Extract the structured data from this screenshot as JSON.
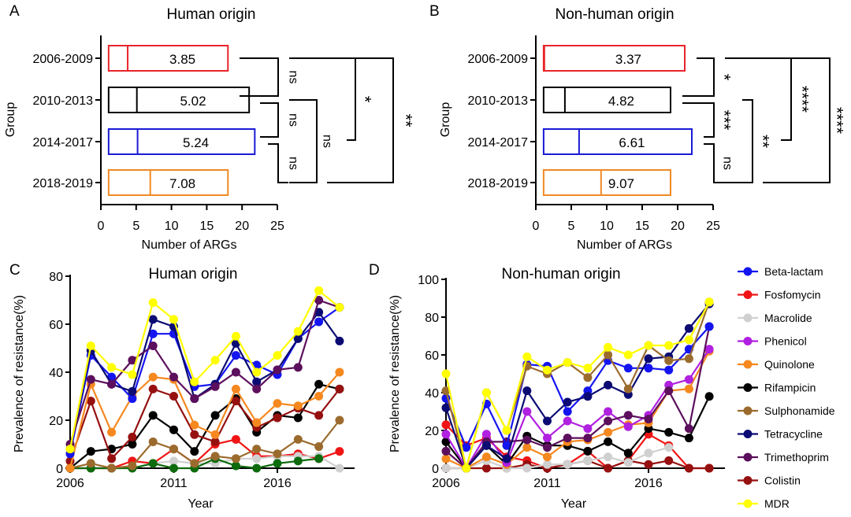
{
  "chart_data": [
    {
      "panel": "A",
      "type": "box",
      "title": "Human origin",
      "xlabel": "Number of ARGs",
      "ylabel": "Group",
      "xlim": [
        0,
        25
      ],
      "xticks": [
        "0",
        "5",
        "10",
        "15",
        "20",
        "25"
      ],
      "groups": [
        {
          "label": "2006-2009",
          "range": [
            1.1,
            18
          ],
          "median": 3.8,
          "value_label": "3.85",
          "color": "#e8242a"
        },
        {
          "label": "2010-2013",
          "range": [
            1.1,
            21
          ],
          "median": 5.1,
          "value_label": "5.02",
          "color": "#000000"
        },
        {
          "label": "2014-2017",
          "range": [
            1.1,
            21.8
          ],
          "median": 5.2,
          "value_label": "5.24",
          "color": "#1a1ad6"
        },
        {
          "label": "2018-2019",
          "range": [
            1.1,
            18
          ],
          "median": 7.0,
          "value_label": "7.08",
          "color": "#f08a24"
        }
      ],
      "comparisons": [
        {
          "groups": [
            0,
            1
          ],
          "label": "ns"
        },
        {
          "groups": [
            1,
            2
          ],
          "label": "ns"
        },
        {
          "groups": [
            2,
            3
          ],
          "label": "ns"
        },
        {
          "groups": [
            0,
            2
          ],
          "label": "*"
        },
        {
          "groups": [
            1,
            3
          ],
          "label": "ns"
        },
        {
          "groups": [
            0,
            3
          ],
          "label": "**"
        }
      ]
    },
    {
      "panel": "B",
      "type": "box",
      "title": "Non-human origin",
      "xlabel": "Number of ARGs",
      "ylabel": "Group",
      "xlim": [
        0,
        25
      ],
      "xticks": [
        "0",
        "5",
        "10",
        "15",
        "20",
        "25"
      ],
      "groups": [
        {
          "label": "2006-2009",
          "range": [
            1.1,
            21
          ],
          "median": 1.2,
          "value_label": "3.37",
          "color": "#e8242a"
        },
        {
          "label": "2010-2013",
          "range": [
            1.1,
            19
          ],
          "median": 4.1,
          "value_label": "4.82",
          "color": "#000000"
        },
        {
          "label": "2014-2017",
          "range": [
            1.1,
            22
          ],
          "median": 6.1,
          "value_label": "6.61",
          "color": "#1a1ad6"
        },
        {
          "label": "2018-2019",
          "range": [
            1.1,
            19
          ],
          "median": 9.2,
          "value_label": "9.07",
          "color": "#f08a24"
        }
      ],
      "comparisons": [
        {
          "groups": [
            0,
            1
          ],
          "label": "*"
        },
        {
          "groups": [
            1,
            2
          ],
          "label": "***"
        },
        {
          "groups": [
            2,
            3
          ],
          "label": "ns"
        },
        {
          "groups": [
            0,
            2
          ],
          "label": "****"
        },
        {
          "groups": [
            1,
            3
          ],
          "label": "**"
        },
        {
          "groups": [
            0,
            3
          ],
          "label": "****"
        }
      ]
    },
    {
      "panel": "C",
      "type": "line",
      "title": "Human origin",
      "xlabel": "Year",
      "ylabel": "Prevalence of resistance(%)",
      "x": [
        2006,
        2007,
        2008,
        2009,
        2010,
        2011,
        2012,
        2013,
        2014,
        2015,
        2016,
        2017,
        2018,
        2019
      ],
      "xticks": [
        "2006",
        "2011",
        "2016"
      ],
      "ylim": [
        0,
        80
      ],
      "yticks": [
        "0",
        "20",
        "40",
        "60",
        "80"
      ],
      "series": [
        {
          "name": "MDR",
          "color": "#ffff00",
          "values": [
            8,
            51,
            42,
            39,
            69,
            62,
            36,
            45,
            55,
            40,
            47,
            57,
            74,
            67
          ]
        },
        {
          "name": "Trimethoprim",
          "color": "#5c0f5c",
          "values": [
            10,
            37,
            35,
            45,
            51,
            38,
            29,
            34,
            40,
            33,
            41,
            42,
            70,
            67
          ]
        },
        {
          "name": "Tetracycline",
          "color": "#0b0b73",
          "values": [
            8,
            49,
            35,
            32,
            62,
            59,
            29,
            35,
            52,
            36,
            41,
            54,
            65,
            53
          ]
        },
        {
          "name": "Beta-lactam",
          "color": "#1414f0",
          "values": [
            6,
            47,
            38,
            29,
            56,
            56,
            34,
            35,
            47,
            43,
            39,
            54,
            61,
            67
          ]
        },
        {
          "name": "Quinolone",
          "color": "#f5881f",
          "values": [
            0,
            35,
            15,
            30,
            38,
            37,
            18,
            14,
            33,
            19,
            27,
            26,
            30,
            40
          ]
        },
        {
          "name": "Colistin",
          "color": "#961010",
          "values": [
            3,
            28,
            4,
            13,
            33,
            30,
            14,
            11,
            28,
            17,
            21,
            25,
            22,
            33
          ]
        },
        {
          "name": "Rifampicin",
          "color": "#000000",
          "values": [
            0,
            7,
            8,
            10,
            22,
            16,
            7,
            22,
            29,
            15,
            22,
            21,
            35,
            33
          ]
        },
        {
          "name": "Sulphonamide",
          "color": "#9b6b2e",
          "values": [
            0,
            2,
            0,
            1,
            11,
            8,
            2,
            5,
            4,
            8,
            6,
            12,
            9,
            20
          ]
        },
        {
          "color": "#0d6b0d",
          "values": [
            0,
            0,
            0,
            0,
            2,
            0,
            0,
            4,
            1,
            0,
            2,
            3,
            4,
            null
          ]
        },
        {
          "name": "Macrolide",
          "color": "#d0d0d0",
          "values": [
            0,
            0,
            0,
            0,
            2,
            3,
            2,
            2,
            4,
            4,
            5,
            5,
            5,
            0
          ]
        },
        {
          "name": "Fosfomycin",
          "color": "#f01414",
          "values": [
            0,
            0,
            0,
            3,
            2,
            8,
            2,
            10,
            12,
            5,
            5,
            6,
            4,
            7
          ]
        }
      ]
    },
    {
      "panel": "D",
      "type": "line",
      "title": "Non-human origin",
      "xlabel": "Year",
      "ylabel": "Prevalence of resistance(%)",
      "x": [
        2006,
        2007,
        2008,
        2009,
        2010,
        2011,
        2012,
        2013,
        2014,
        2015,
        2016,
        2017,
        2018,
        2019
      ],
      "xticks": [
        "2006",
        "2011",
        "2016"
      ],
      "ylim": [
        0,
        100
      ],
      "yticks": [
        "0",
        "20",
        "40",
        "60",
        "80",
        "100"
      ],
      "series": [
        {
          "name": "MDR",
          "color": "#ffff00",
          "values": [
            50,
            0,
            40,
            20,
            59,
            52,
            56,
            53,
            64,
            60,
            65,
            65,
            68,
            88
          ]
        },
        {
          "name": "Sulphonamide",
          "color": "#9b6b2e",
          "values": [
            41,
            0,
            40,
            20,
            54,
            50,
            56,
            48,
            60,
            42,
            65,
            57,
            58,
            88
          ]
        },
        {
          "name": "Tetracycline",
          "color": "#0b0b73",
          "values": [
            32,
            0,
            12,
            5,
            41,
            25,
            35,
            38,
            44,
            39,
            58,
            59,
            74,
            87
          ]
        },
        {
          "name": "Beta-lactam",
          "color": "#1414f0",
          "values": [
            37,
            11,
            34,
            12,
            55,
            54,
            30,
            41,
            57,
            53,
            53,
            52,
            63,
            75
          ]
        },
        {
          "name": "Trimethoprim",
          "color": "#5c0f5c",
          "values": [
            9,
            0,
            14,
            14,
            15,
            11,
            16,
            16,
            25,
            28,
            26,
            41,
            21,
            75
          ]
        },
        {
          "name": "Phenicol",
          "color": "#b020e0",
          "values": [
            18,
            0,
            18,
            3,
            30,
            16,
            25,
            21,
            30,
            22,
            28,
            44,
            47,
            63
          ]
        },
        {
          "name": "Quinolone",
          "color": "#f5881f",
          "values": [
            5,
            0,
            6,
            2,
            11,
            6,
            14,
            15,
            19,
            23,
            24,
            41,
            42,
            62
          ]
        },
        {
          "name": "Rifampicin",
          "color": "#000000",
          "values": [
            14,
            0,
            12,
            2,
            17,
            12,
            12,
            9,
            14,
            8,
            21,
            19,
            16,
            38
          ]
        },
        {
          "name": "Macrolide",
          "color": "#d0d0d0",
          "values": [
            0,
            0,
            4,
            0,
            0,
            2,
            2,
            4,
            6,
            3,
            8,
            11,
            null,
            null
          ]
        },
        {
          "name": "Colistin",
          "color": "#961010",
          "values": [
            0,
            0,
            0,
            0,
            2,
            0,
            2,
            4,
            0,
            4,
            2,
            4,
            0,
            0
          ]
        },
        {
          "name": "Fosfomycin",
          "color": "#f01414",
          "values": [
            23,
            12,
            16,
            6,
            4,
            0,
            2,
            9,
            0,
            4,
            18,
            12,
            0,
            0
          ]
        }
      ]
    }
  ],
  "legend": {
    "placement": "right",
    "items": [
      {
        "name": "Beta-lactam",
        "color": "#1414f0"
      },
      {
        "name": "Fosfomycin",
        "color": "#f01414"
      },
      {
        "name": "Macrolide",
        "color": "#d0d0d0"
      },
      {
        "name": "Phenicol",
        "color": "#b020e0"
      },
      {
        "name": "Quinolone",
        "color": "#f5881f"
      },
      {
        "name": "Rifampicin",
        "color": "#000000"
      },
      {
        "name": "Sulphonamide",
        "color": "#9b6b2e"
      },
      {
        "name": "Tetracycline",
        "color": "#0b0b73"
      },
      {
        "name": "Trimethoprim",
        "color": "#5c0f5c"
      },
      {
        "name": "Colistin",
        "color": "#961010"
      },
      {
        "name": "MDR",
        "color": "#ffff00"
      }
    ]
  }
}
